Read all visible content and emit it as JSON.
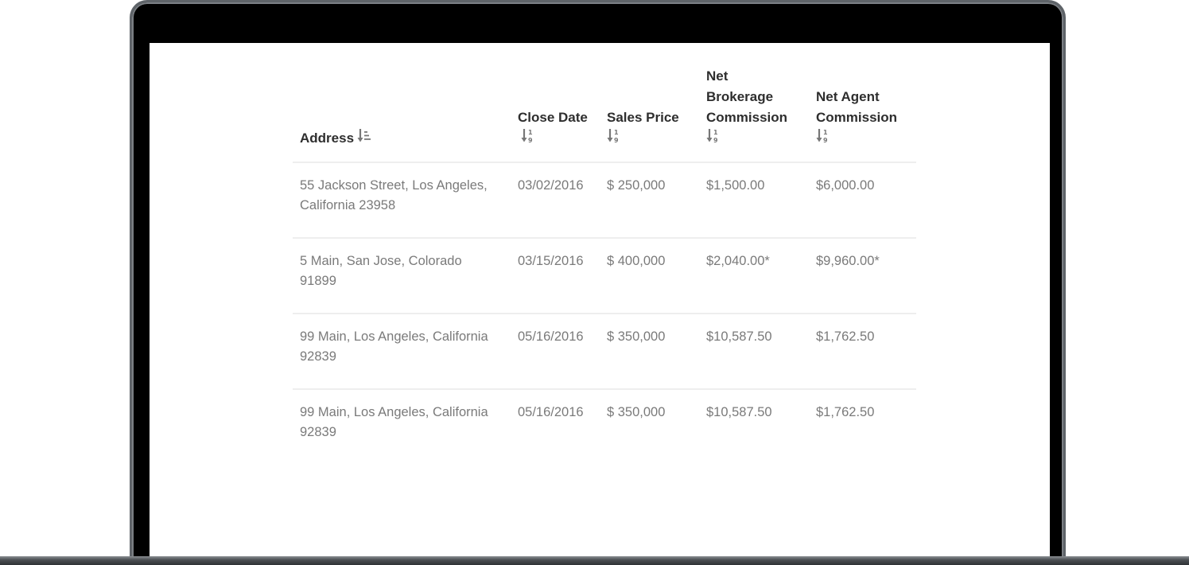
{
  "table": {
    "headers": [
      {
        "label": "Address",
        "sort_icon": "sort-alpha-icon"
      },
      {
        "label": "Close Date",
        "sort_icon": "sort-numeric-icon"
      },
      {
        "label": "Sales Price",
        "sort_icon": "sort-numeric-icon"
      },
      {
        "label": "Net Brokerage Commission",
        "sort_icon": "sort-numeric-icon"
      },
      {
        "label": "Net Agent Commission",
        "sort_icon": "sort-numeric-icon"
      }
    ],
    "rows": [
      {
        "address": "55 Jackson Street, Los Angeles, California 23958",
        "close_date": "03/02/2016",
        "sales_price": "$ 250,000",
        "net_brokerage": "$1,500.00",
        "net_agent": "$6,000.00"
      },
      {
        "address": "5 Main, San Jose, Colorado 91899",
        "close_date": "03/15/2016",
        "sales_price": "$ 400,000",
        "net_brokerage": "$2,040.00*",
        "net_agent": "$9,960.00*"
      },
      {
        "address": "99 Main, Los Angeles, California 92839",
        "close_date": "05/16/2016",
        "sales_price": "$ 350,000",
        "net_brokerage": "$10,587.50",
        "net_agent": "$1,762.50"
      },
      {
        "address": "99 Main, Los Angeles, California 92839",
        "close_date": "05/16/2016",
        "sales_price": "$ 350,000",
        "net_brokerage": "$10,587.50",
        "net_agent": "$1,762.50"
      }
    ]
  },
  "colors": {
    "header_text": "#2e2e2e",
    "cell_text": "#7a7a7a",
    "divider": "#eeeeee",
    "frame": "#000000"
  }
}
